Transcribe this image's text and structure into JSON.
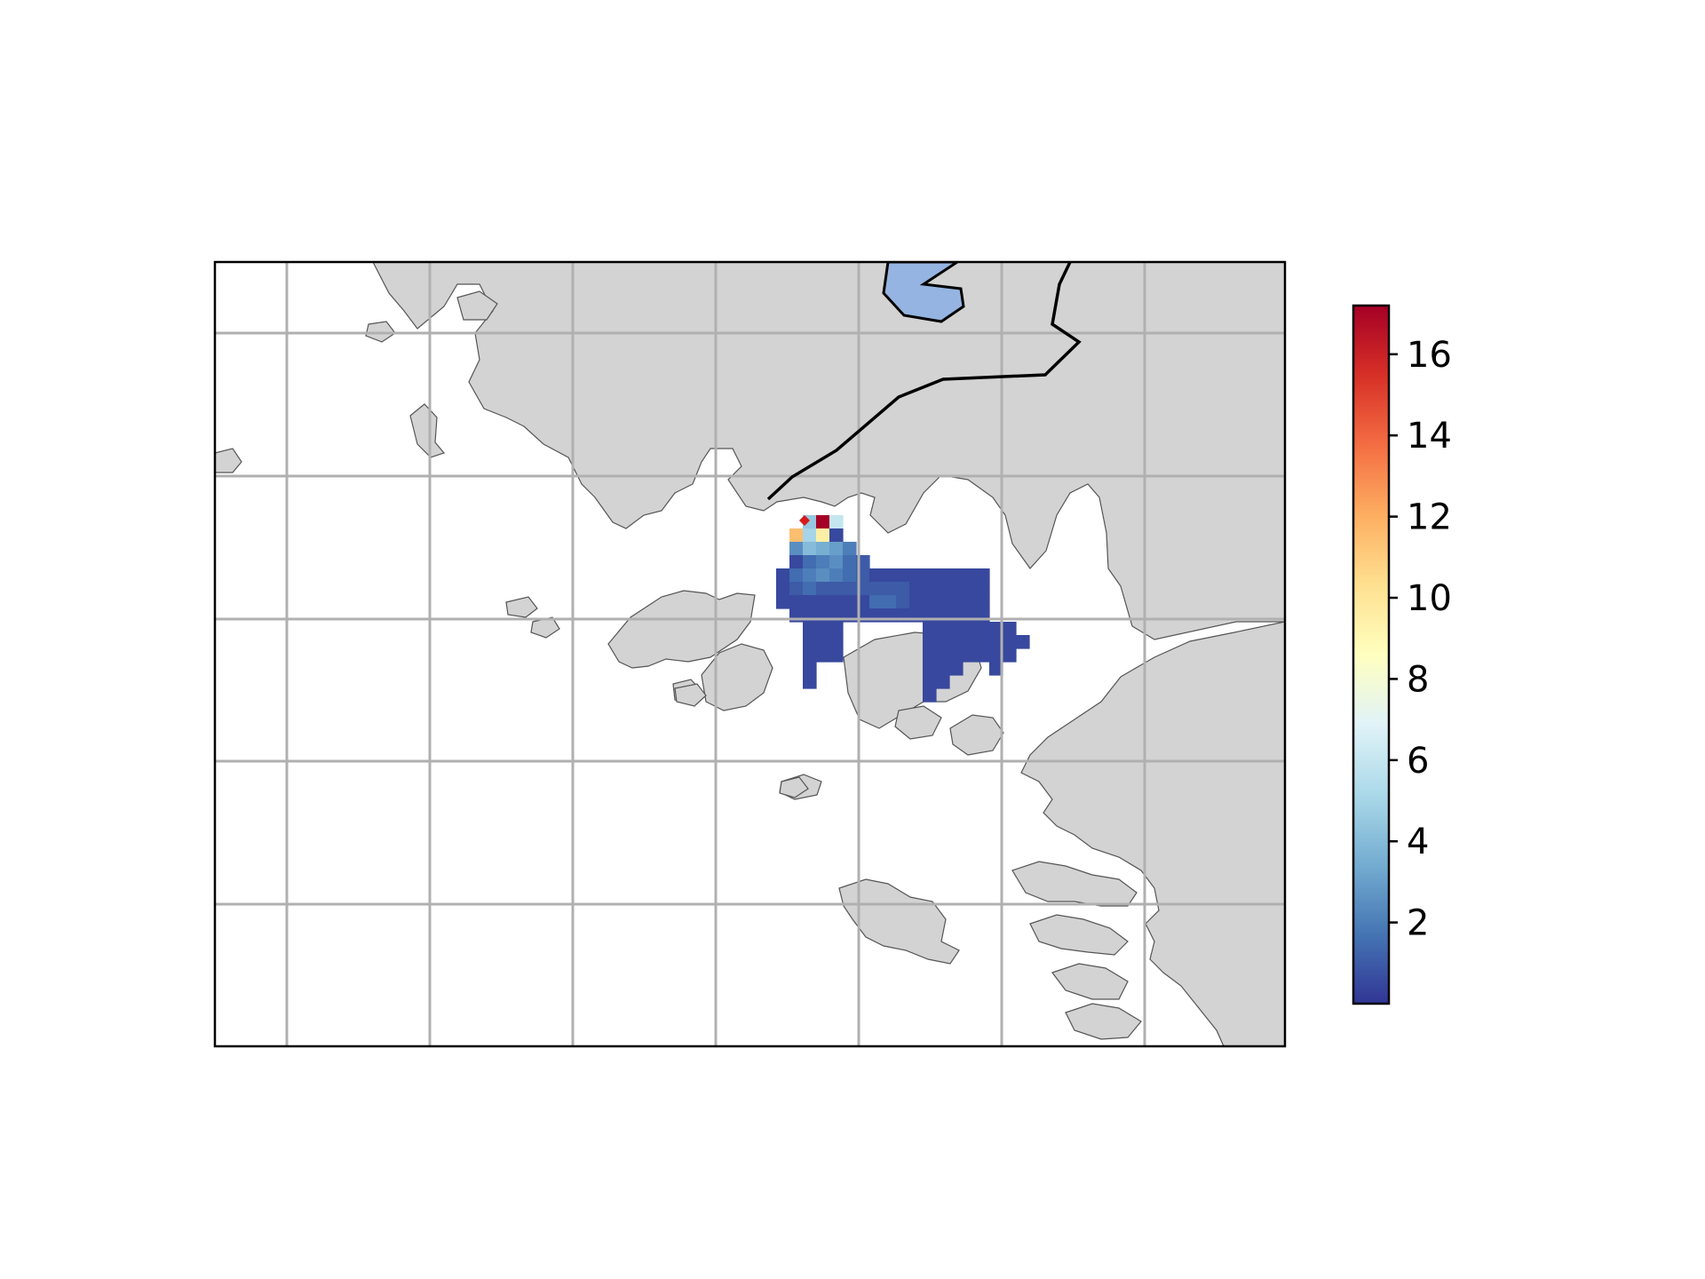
{
  "map": {
    "type": "heatmap",
    "colormap": "RdYlBu_r",
    "gridlines": true,
    "land_color": "#d3d3d3",
    "ocean_color": "#ffffff",
    "lake_color": "#95b4e1",
    "border_color": "#000000",
    "grid_color": "#b0b0b0",
    "gridline_count": {
      "vertical": 7,
      "horizontal": 5
    }
  },
  "colorbar": {
    "range": [
      0,
      17.2
    ],
    "ticks": [
      2,
      4,
      6,
      8,
      10,
      12,
      14,
      16
    ],
    "tick_labels": [
      "2",
      "4",
      "6",
      "8",
      "10",
      "12",
      "14",
      "16"
    ],
    "orientation": "vertical"
  },
  "chart_data": {
    "type": "heatmap",
    "value_range": [
      0,
      17.2
    ],
    "cells": [
      [
        0,
        0,
        0,
        0,
        0,
        0,
        0,
        0,
        0,
        0,
        0,
        0,
        0,
        0,
        0,
        0,
        0,
        0,
        0,
        0,
        0,
        0,
        0
      ],
      [
        0,
        0,
        0,
        0,
        0,
        0,
        0,
        0,
        0,
        0,
        0,
        0,
        0,
        0,
        0,
        0,
        0,
        0,
        0,
        0,
        0,
        0,
        0
      ],
      [
        0,
        0,
        0,
        4.5,
        17.2,
        6,
        0,
        0,
        0,
        0,
        0,
        0,
        0,
        0,
        0,
        0,
        0,
        0,
        0,
        0,
        0,
        0,
        0
      ],
      [
        0,
        0,
        11.5,
        5,
        9.5,
        0.5,
        0,
        0,
        0,
        0,
        0,
        0,
        0,
        0,
        0,
        0,
        0,
        0,
        0,
        0,
        0,
        0,
        0
      ],
      [
        0,
        0,
        2.5,
        4,
        3.5,
        3,
        2,
        0,
        0,
        0,
        0,
        0,
        0,
        0,
        0,
        0,
        0,
        0,
        0,
        0,
        0,
        0,
        0
      ],
      [
        0,
        0,
        0.5,
        1.5,
        2,
        2.5,
        1.5,
        1,
        0,
        0,
        0,
        0,
        0,
        0,
        0,
        0,
        0,
        0,
        0,
        0,
        0,
        0,
        0
      ],
      [
        0,
        0.5,
        1.5,
        2,
        2.5,
        2,
        1.5,
        1,
        0.5,
        0.5,
        0.5,
        0.5,
        0.5,
        0.5,
        0.5,
        0.5,
        0.5,
        0,
        0,
        0,
        0,
        0,
        0
      ],
      [
        0,
        0.5,
        1,
        1.5,
        1,
        1,
        1,
        1,
        1,
        1,
        1,
        0.5,
        0.5,
        0.5,
        0.5,
        0.5,
        0.5,
        0,
        0,
        0,
        0,
        0,
        0
      ],
      [
        0,
        0.5,
        0.5,
        0.5,
        0.5,
        0.5,
        0.5,
        0.5,
        1.5,
        1.5,
        1,
        0.5,
        0.5,
        0.5,
        0.5,
        0.5,
        0.5,
        0,
        0,
        0,
        0,
        0,
        0
      ],
      [
        0,
        0,
        0.5,
        0.5,
        0.5,
        0.5,
        0.5,
        0.5,
        0.5,
        0.5,
        0.5,
        0.5,
        0.5,
        0.5,
        0.5,
        0.5,
        0.5,
        0,
        0,
        0,
        0,
        0,
        0
      ],
      [
        0,
        0,
        0,
        0.5,
        0.5,
        0.5,
        0,
        0,
        0,
        0,
        0,
        0,
        0.5,
        0.5,
        0.5,
        0.5,
        0.5,
        0.5,
        0.5,
        0,
        0,
        0,
        0
      ],
      [
        0,
        0,
        0,
        0.5,
        0.5,
        0.5,
        0,
        0,
        0,
        0,
        0,
        0,
        0.5,
        0.5,
        0.5,
        0.5,
        0.5,
        0.5,
        0.5,
        0.5,
        0,
        0,
        0
      ],
      [
        0,
        0,
        0,
        0.5,
        0.5,
        0.5,
        0,
        0,
        0,
        0,
        0,
        0,
        0.5,
        0.5,
        0.5,
        0.5,
        0.5,
        0.5,
        0.5,
        0,
        0,
        0,
        0
      ],
      [
        0,
        0,
        0,
        0.5,
        0,
        0,
        0,
        0,
        0,
        0,
        0,
        0,
        0.5,
        0.5,
        0.5,
        0,
        0,
        0.5,
        0,
        0,
        0,
        0,
        0
      ],
      [
        0,
        0,
        0,
        0.5,
        0,
        0,
        0,
        0,
        0,
        0,
        0,
        0,
        0.5,
        0.5,
        0,
        0,
        0,
        0,
        0,
        0,
        0,
        0,
        0
      ],
      [
        0,
        0,
        0,
        0,
        0,
        0,
        0,
        0,
        0,
        0,
        0,
        0,
        0.5,
        0,
        0,
        0,
        0,
        0,
        0,
        0,
        0,
        0,
        0
      ]
    ]
  }
}
